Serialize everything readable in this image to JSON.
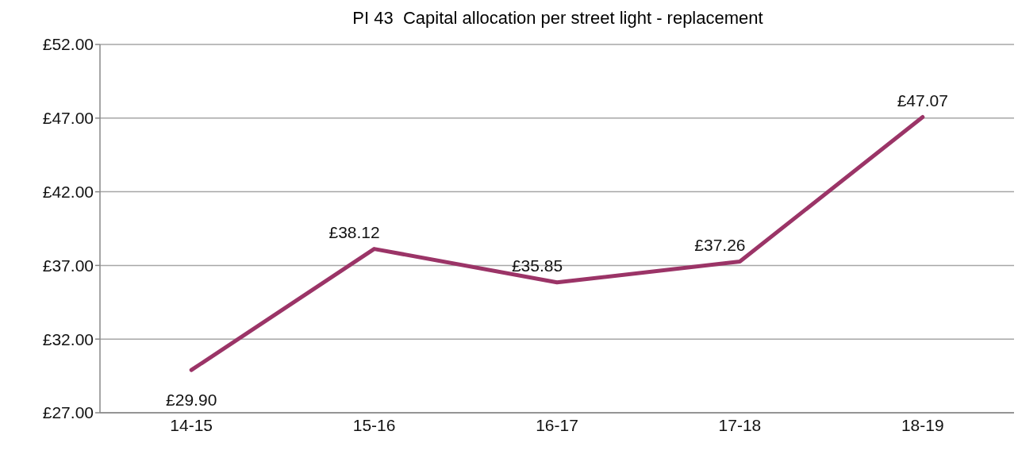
{
  "chart_data": {
    "type": "line",
    "title": "PI 43  Capital allocation per street light - replacement",
    "categories": [
      "14-15",
      "15-16",
      "16-17",
      "17-18",
      "18-19"
    ],
    "series": [
      {
        "color": "#9b3467",
        "values": [
          29.9,
          38.12,
          35.85,
          37.26,
          47.07
        ],
        "value_labels": [
          "£29.90",
          "£38.12",
          "£35.85",
          "£37.26",
          "£47.07"
        ]
      }
    ],
    "ylim": [
      27,
      52
    ],
    "yticks": [
      {
        "value": 27,
        "label": "£27.00"
      },
      {
        "value": 32,
        "label": "£32.00"
      },
      {
        "value": 37,
        "label": "£37.00"
      },
      {
        "value": 42,
        "label": "£42.00"
      },
      {
        "value": 47,
        "label": "£47.00"
      },
      {
        "value": 52,
        "label": "£52.00"
      }
    ],
    "grid": "y",
    "legend": false,
    "marker": "none",
    "line_style": "solid"
  }
}
